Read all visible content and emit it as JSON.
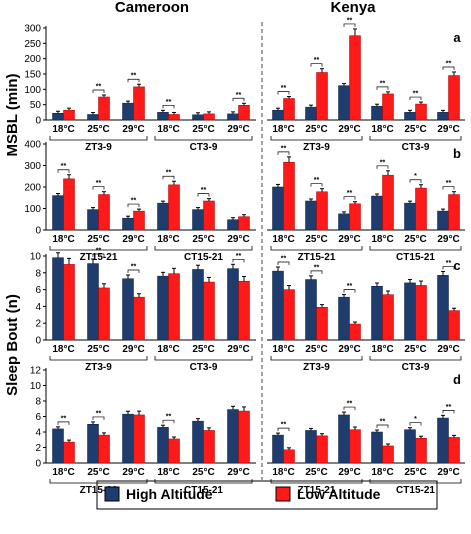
{
  "colors": {
    "high": "#1f3c6e",
    "low": "#ff1a1a",
    "axis": "#000000",
    "divider": "#444444"
  },
  "regions": [
    "Cameroon",
    "Kenya"
  ],
  "legend": {
    "high": "High Altitude",
    "low": "Low Altitude"
  },
  "ylabels": {
    "msbl": "MSBL (min)",
    "bout": "Sleep Bout (n)"
  },
  "temps": [
    "18°C",
    "25°C",
    "29°C"
  ],
  "chart_data": [
    {
      "type": "bar",
      "panel": "a",
      "ylim": [
        0,
        300
      ],
      "yticks": [
        "0",
        "50",
        "100",
        "150",
        "200",
        "250",
        "300"
      ],
      "groups": [
        "ZT3-9",
        "CT3-9"
      ],
      "series": [
        {
          "name": "High Altitude",
          "cameroon": [
            22,
            18,
            55,
            25,
            17,
            20
          ],
          "kenya": [
            32,
            42,
            112,
            45,
            25,
            25
          ]
        },
        {
          "name": "Low Altitude",
          "cameroon": [
            32,
            75,
            108,
            18,
            20,
            48
          ],
          "kenya": [
            70,
            155,
            275,
            85,
            52,
            145
          ]
        }
      ],
      "significance": {
        "cameroon": [
          "",
          "**",
          "**",
          "**",
          "",
          "**"
        ],
        "kenya": [
          "**",
          "**",
          "**",
          "**",
          "**",
          "**"
        ]
      }
    },
    {
      "type": "bar",
      "panel": "b",
      "ylim": [
        0,
        400
      ],
      "yticks": [
        "0",
        "100",
        "200",
        "300",
        "400"
      ],
      "groups": [
        "ZT15-21",
        "CT15-21"
      ],
      "series": [
        {
          "name": "High Altitude",
          "cameroon": [
            160,
            95,
            55,
            125,
            95,
            48
          ],
          "kenya": [
            200,
            135,
            75,
            158,
            125,
            88
          ]
        },
        {
          "name": "Low Altitude",
          "cameroon": [
            238,
            165,
            88,
            210,
            135,
            62
          ],
          "kenya": [
            315,
            178,
            122,
            255,
            195,
            165
          ]
        }
      ],
      "significance": {
        "cameroon": [
          "**",
          "**",
          "**",
          "**",
          "**",
          ""
        ],
        "kenya": [
          "**",
          "**",
          "**",
          "**",
          "*",
          "**"
        ]
      }
    },
    {
      "type": "bar",
      "panel": "c",
      "ylim": [
        0,
        10
      ],
      "yticks": [
        "0",
        "2",
        "4",
        "6",
        "8",
        "10"
      ],
      "groups": [
        "ZT3-9",
        "CT3-9"
      ],
      "series": [
        {
          "name": "High Altitude",
          "cameroon": [
            9.8,
            9.1,
            7.3,
            7.6,
            8.4,
            8.5
          ],
          "kenya": [
            8.2,
            7.2,
            5.1,
            6.4,
            6.8,
            7.7
          ]
        },
        {
          "name": "Low Altitude",
          "cameroon": [
            9.0,
            6.2,
            5.1,
            7.9,
            6.9,
            7.0
          ],
          "kenya": [
            6.0,
            3.9,
            1.9,
            5.4,
            6.5,
            3.5
          ]
        }
      ],
      "significance": {
        "cameroon": [
          "",
          "**",
          "**",
          "",
          "",
          "**"
        ],
        "kenya": [
          "**",
          "**",
          "**",
          "",
          "",
          "**"
        ]
      }
    },
    {
      "type": "bar",
      "panel": "d",
      "ylim": [
        0,
        12
      ],
      "yticks": [
        "0",
        "2",
        "4",
        "6",
        "8",
        "10",
        "12"
      ],
      "groups": [
        "ZT15-21",
        "CT15-21"
      ],
      "series": [
        {
          "name": "High Altitude",
          "cameroon": [
            4.4,
            5.0,
            6.3,
            4.6,
            5.4,
            6.9
          ],
          "kenya": [
            3.6,
            4.2,
            6.2,
            4.0,
            4.3,
            5.8
          ]
        },
        {
          "name": "Low Altitude",
          "cameroon": [
            2.7,
            3.6,
            6.2,
            3.1,
            4.2,
            6.7
          ],
          "kenya": [
            1.7,
            3.5,
            4.3,
            2.2,
            3.2,
            3.3
          ]
        }
      ],
      "significance": {
        "cameroon": [
          "**",
          "**",
          "",
          "**",
          "",
          ""
        ],
        "kenya": [
          "**",
          "",
          "**",
          "**",
          "*",
          "**"
        ]
      }
    }
  ]
}
